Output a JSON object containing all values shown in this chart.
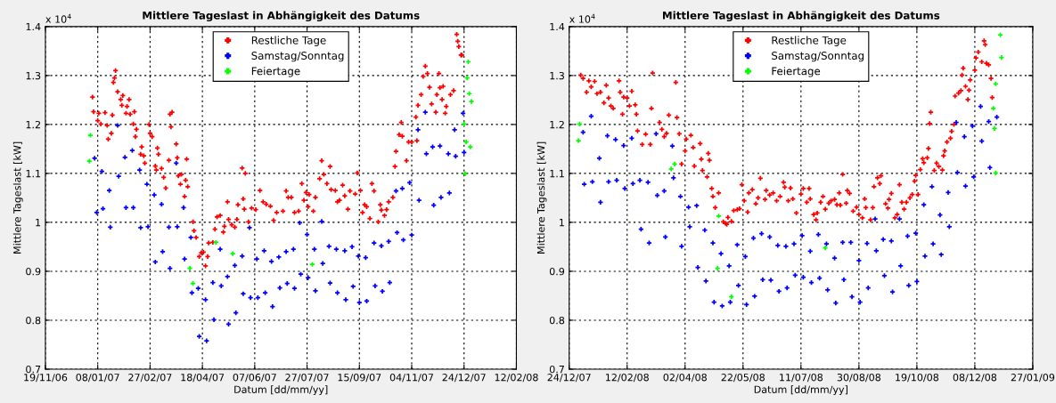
{
  "chart_data": [
    {
      "type": "scatter",
      "title": "Mittlere Tageslast in Abhängigkeit des Datums",
      "xlabel": "Datum [dd/mm/yy]",
      "ylabel": "Mittlere Tageslast [kW]",
      "annotations": [
        "x 10$^{4}$"
      ],
      "xlim": [
        "2006-11-19",
        "2008-02-12"
      ],
      "ylim": [
        0.7,
        1.4
      ],
      "xticks": [
        {
          "value": "2006-11-19",
          "label": "19/11/06"
        },
        {
          "value": "2007-01-08",
          "label": "08/01/07"
        },
        {
          "value": "2007-02-27",
          "label": "27/02/07"
        },
        {
          "value": "2007-04-18",
          "label": "18/04/07"
        },
        {
          "value": "2007-06-07",
          "label": "07/06/07"
        },
        {
          "value": "2007-07-27",
          "label": "27/07/07"
        },
        {
          "value": "2007-09-15",
          "label": "15/09/07"
        },
        {
          "value": "2007-11-04",
          "label": "04/11/07"
        },
        {
          "value": "2007-12-24",
          "label": "24/12/07"
        },
        {
          "value": "2008-02-12",
          "label": "12/02/08"
        }
      ],
      "yticks": [
        0.7,
        0.8,
        0.9,
        1,
        1.1,
        1.2,
        1.3,
        1.4
      ],
      "grid": true,
      "legend": "top",
      "marker": "cross",
      "series": [
        {
          "name": "Restliche Tage",
          "color": "#ff0000",
          "x": [
            "2007-01-03",
            "2007-01-04",
            "2007-01-08",
            "2007-01-09",
            "2007-01-11",
            "2007-01-15",
            "2007-01-17",
            "2007-01-18",
            "2007-01-21",
            "2007-01-22",
            "2007-01-23",
            "2007-01-25",
            "2007-01-24",
            "2007-01-27",
            "2007-01-30",
            "2007-01-31",
            "2007-02-01",
            "2007-02-04",
            "2007-02-05",
            "2007-02-07",
            "2007-02-08",
            "2007-02-11",
            "2007-02-12",
            "2007-02-14",
            "2007-02-13",
            "2007-02-19",
            "2007-02-18",
            "2007-02-21",
            "2007-02-22",
            "2007-02-26",
            "2007-02-27",
            "2007-03-01",
            "2007-03-04",
            "2007-03-06",
            "2007-03-07",
            "2007-03-05",
            "2007-03-10",
            "2007-03-12",
            "2007-03-14",
            "2007-03-17",
            "2007-03-18",
            "2007-03-20",
            "2007-03-19",
            "2007-03-24",
            "2007-03-25",
            "2007-03-26",
            "2007-03-28",
            "2007-03-29",
            "2007-04-02",
            "2007-04-01",
            "2007-04-03",
            "2007-04-04",
            "2007-04-09",
            "2007-04-10",
            "2007-04-12",
            "2007-04-15",
            "2007-04-17",
            "2007-04-19",
            "2007-04-21",
            "2007-04-23",
            "2007-04-24",
            "2007-04-28",
            "2007-04-30",
            "2007-05-02",
            "2007-05-05",
            "2007-05-08",
            "2007-05-09",
            "2007-05-12",
            "2007-05-13",
            "2007-05-16",
            "2007-05-19",
            "2007-05-21",
            "2007-05-22",
            "2007-05-26",
            "2007-05-29",
            "2007-05-27",
            "2007-05-28",
            "2007-06-01",
            "2007-06-04",
            "2007-06-08",
            "2007-06-12",
            "2007-06-15",
            "2007-06-18",
            "2007-06-22",
            "2007-06-25",
            "2007-06-28",
            "2007-07-04",
            "2007-07-07",
            "2007-07-09",
            "2007-07-12",
            "2007-07-15",
            "2007-07-19",
            "2007-07-22",
            "2007-07-24",
            "2007-07-26",
            "2007-07-28",
            "2007-07-29",
            "2007-08-02",
            "2007-08-04",
            "2007-08-08",
            "2007-08-10",
            "2007-08-12",
            "2007-08-15",
            "2007-08-18",
            "2007-08-19",
            "2007-08-23",
            "2007-08-25",
            "2007-08-27",
            "2007-08-30",
            "2007-09-01",
            "2007-09-04",
            "2007-09-06",
            "2007-09-11",
            "2007-09-13",
            "2007-09-16",
            "2007-09-18",
            "2007-09-20",
            "2007-09-22",
            "2007-09-25",
            "2007-09-27",
            "2007-09-29",
            "2007-10-03",
            "2007-10-05",
            "2007-10-06",
            "2007-10-09",
            "2007-10-11",
            "2007-10-13",
            "2007-10-17",
            "2007-10-19",
            "2007-10-20",
            "2007-10-23",
            "2007-10-25",
            "2007-10-26",
            "2007-10-30",
            "2007-11-01",
            "2007-11-04",
            "2007-11-08",
            "2007-11-09",
            "2007-11-10",
            "2007-11-13",
            "2007-11-15",
            "2007-11-17",
            "2007-11-19",
            "2007-11-21",
            "2007-11-23",
            "2007-11-27",
            "2007-11-28",
            "2007-11-30",
            "2007-12-01",
            "2007-12-03",
            "2007-12-04",
            "2007-12-06",
            "2007-12-07",
            "2007-12-11",
            "2007-12-14",
            "2007-12-17",
            "2007-12-18",
            "2007-12-19",
            "2007-12-21",
            "2007-12-22"
          ],
          "values": [
            1.256,
            1.226,
            1.208,
            1.223,
            1.201,
            1.224,
            1.198,
            1.17,
            1.182,
            1.219,
            1.286,
            1.31,
            1.295,
            1.267,
            1.251,
            1.239,
            1.259,
            1.223,
            1.237,
            1.251,
            1.221,
            1.201,
            1.226,
            1.19,
            1.175,
            1.154,
            1.139,
            1.136,
            1.121,
            1.2,
            1.182,
            1.175,
            1.115,
            1.152,
            1.139,
            1.107,
            1.11,
            1.092,
            1.07,
            1.127,
            1.221,
            1.225,
            1.195,
            1.16,
            1.132,
            1.095,
            1.078,
            1.098,
            1.086,
            1.053,
            1.129,
            1.073,
            1.001,
            0.983,
            0.969,
            0.93,
            0.938,
            0.939,
            0.911,
            0.93,
            0.958,
            0.959,
            0.986,
            1.011,
            1.014,
            0.98,
            0.992,
            1.042,
            1.006,
            0.995,
            0.99,
            1.006,
            1.036,
            1.111,
            1.1,
            1.048,
            1.027,
            1.001,
            1.029,
            1.026,
            1.065,
            1.042,
            1.037,
            1.033,
            1.004,
            1.02,
            1.023,
            1.064,
            1.051,
            1.051,
            1.02,
            1.023,
            1.079,
            1.045,
            1.061,
            1.032,
            1.057,
            1.023,
            1.051,
            1.089,
            1.126,
            1.098,
            1.079,
            1.114,
            1.067,
            1.065,
            1.042,
            1.045,
            1.076,
            1.054,
            1.027,
            1.064,
            1.058,
            1.101,
            1.065,
            1.02,
            1.036,
            1.032,
            1.008,
            1.079,
            1.064,
            1.001,
            1.036,
            1.025,
            1.014,
            1.026,
            1.042,
            1.051,
            1.114,
            1.145,
            1.179,
            1.204,
            1.176,
            1.126,
            1.164,
            1.164,
            1.215,
            1.167,
            1.239,
            1.261,
            1.298,
            1.319,
            1.304,
            1.276,
            1.242,
            1.225,
            1.261,
            1.304,
            1.275,
            1.251,
            1.278,
            1.223,
            1.237,
            1.261,
            1.269,
            1.384,
            1.37,
            1.359,
            1.342,
            1.342
          ]
        },
        {
          "name": "Samstag/Sonntag",
          "color": "#0000ff",
          "x": [
            "2007-01-05",
            "2007-01-07",
            "2007-01-12",
            "2007-01-13",
            "2007-01-19",
            "2007-01-20",
            "2007-01-27",
            "2007-01-28",
            "2007-02-03",
            "2007-02-04",
            "2007-02-10",
            "2007-02-11",
            "2007-02-17",
            "2007-02-18",
            "2007-02-24",
            "2007-02-25",
            "2007-03-03",
            "2007-03-04",
            "2007-03-10",
            "2007-03-11",
            "2007-03-17",
            "2007-03-18",
            "2007-03-24",
            "2007-03-25",
            "2007-03-31",
            "2007-04-01",
            "2007-04-07",
            "2007-04-08",
            "2007-04-14",
            "2007-04-15",
            "2007-04-21",
            "2007-04-22",
            "2007-04-28",
            "2007-04-29",
            "2007-05-05",
            "2007-05-06",
            "2007-05-12",
            "2007-05-13",
            "2007-05-19",
            "2007-05-20",
            "2007-05-26",
            "2007-05-27",
            "2007-06-02",
            "2007-06-03",
            "2007-06-09",
            "2007-06-10",
            "2007-06-16",
            "2007-06-17",
            "2007-06-23",
            "2007-06-24",
            "2007-06-30",
            "2007-07-01",
            "2007-07-07",
            "2007-07-08",
            "2007-07-14",
            "2007-07-15",
            "2007-07-20",
            "2007-07-21",
            "2007-07-27",
            "2007-07-28",
            "2007-08-03",
            "2007-08-04",
            "2007-08-10",
            "2007-08-11",
            "2007-08-17",
            "2007-08-18",
            "2007-08-24",
            "2007-08-25",
            "2007-09-01",
            "2007-09-02",
            "2007-09-08",
            "2007-09-09",
            "2007-09-14",
            "2007-09-15",
            "2007-09-21",
            "2007-09-22",
            "2007-09-29",
            "2007-09-30",
            "2007-10-06",
            "2007-10-07",
            "2007-10-13",
            "2007-10-14",
            "2007-10-21",
            "2007-10-27",
            "2007-11-04",
            "2007-10-20",
            "2007-10-26",
            "2007-11-02",
            "2007-11-10",
            "2007-11-11",
            "2007-11-17",
            "2007-11-18",
            "2007-11-24",
            "2007-11-25",
            "2007-12-01",
            "2007-12-02",
            "2007-12-09",
            "2007-12-10",
            "2007-12-15",
            "2007-12-16",
            "2007-12-23",
            "2007-12-24"
          ],
          "values": [
            1.131,
            1.02,
            1.104,
            1.028,
            1.065,
            0.99,
            1.198,
            1.094,
            1.133,
            1.03,
            1.147,
            1.03,
            1.107,
            0.989,
            1.078,
            0.991,
            1.056,
            0.919,
            1.037,
            0.94,
            0.99,
            0.906,
            1.121,
            0.991,
            1.03,
            0.925,
            0.969,
            0.856,
            0.865,
            0.767,
            0.842,
            0.758,
            0.877,
            0.801,
            0.945,
            0.87,
            0.889,
            0.792,
            0.912,
            0.815,
            0.931,
            0.854,
            0.989,
            0.846,
            0.925,
            0.846,
            0.942,
            0.856,
            0.92,
            0.828,
            0.929,
            0.866,
            0.94,
            0.875,
            0.945,
            0.865,
            0.999,
            0.894,
            0.975,
            0.887,
            0.945,
            0.86,
            1.002,
            0.916,
            0.951,
            0.876,
            0.945,
            0.856,
            0.942,
            0.842,
            0.95,
            0.869,
            0.931,
            0.836,
            0.928,
            0.839,
            0.958,
            0.87,
            0.952,
            0.859,
            0.961,
            0.877,
            0.979,
            0.964,
            0.974,
            1.064,
            1.069,
            1.081,
            1.189,
            1.045,
            1.225,
            1.14,
            1.154,
            1.035,
            1.156,
            1.051,
            1.14,
            1.06,
            1.189,
            1.135,
            1.223,
            1.143
          ]
        },
        {
          "name": "Feiertage",
          "color": "#00ff00",
          "x": [
            "2007-01-01",
            "2006-12-31",
            "2007-04-06",
            "2007-04-09",
            "2007-05-01",
            "2007-05-17",
            "2007-08-01",
            "2007-12-28",
            "2007-12-27",
            "2007-12-29",
            "2007-12-31",
            "2007-12-24",
            "2007-12-26",
            "2007-12-30",
            "2007-12-25"
          ],
          "values": [
            1.178,
            1.125,
            0.906,
            0.875,
            0.959,
            0.936,
            0.914,
            1.328,
            1.295,
            1.263,
            1.247,
            1.201,
            1.164,
            1.154,
            1.099
          ]
        }
      ]
    },
    {
      "type": "scatter",
      "title": "Mittlere Tageslast in Abhängigkeit des Datums",
      "xlabel": "Datum [dd/mm/yy]",
      "ylabel": "Mittlere Tageslast [kW]",
      "annotations": [
        "x 10$^{4}$"
      ],
      "xlim": [
        "2007-12-24",
        "2009-01-27"
      ],
      "ylim": [
        0.7,
        1.4
      ],
      "xticks": [
        {
          "value": "2007-12-24",
          "label": "24/12/07"
        },
        {
          "value": "2008-02-12",
          "label": "12/02/08"
        },
        {
          "value": "2008-04-02",
          "label": "02/04/08"
        },
        {
          "value": "2008-05-22",
          "label": "22/05/08"
        },
        {
          "value": "2008-07-11",
          "label": "11/07/08"
        },
        {
          "value": "2008-08-30",
          "label": "30/08/08"
        },
        {
          "value": "2008-10-19",
          "label": "19/10/08"
        },
        {
          "value": "2008-12-08",
          "label": "08/12/08"
        },
        {
          "value": "2009-01-27",
          "label": "27/01/09"
        }
      ],
      "yticks": [
        0.7,
        0.8,
        0.9,
        1,
        1.1,
        1.2,
        1.3,
        1.4
      ],
      "grid": true,
      "legend": "top",
      "marker": "cross",
      "series": [
        {
          "name": "Restliche Tage",
          "color": "#ff0000",
          "x": [
            "2008-01-03",
            "2008-01-05",
            "2008-01-08",
            "2008-01-10",
            "2008-01-12",
            "2008-01-15",
            "2008-01-17",
            "2008-01-20",
            "2008-01-23",
            "2008-01-25",
            "2008-01-27",
            "2008-01-29",
            "2008-01-31",
            "2008-02-05",
            "2008-02-06",
            "2008-02-08",
            "2008-02-09",
            "2008-02-12",
            "2008-02-14",
            "2008-02-16",
            "2008-02-19",
            "2008-02-20",
            "2008-02-21",
            "2008-02-25",
            "2008-02-28",
            "2008-03-03",
            "2008-03-04",
            "2008-03-05",
            "2008-03-11",
            "2008-03-13",
            "2008-03-15",
            "2008-03-17",
            "2008-03-19",
            "2008-03-25",
            "2008-03-26",
            "2008-03-28",
            "2008-03-30",
            "2008-04-02",
            "2008-04-03",
            "2008-04-07",
            "2008-04-09",
            "2008-04-10",
            "2008-04-15",
            "2008-04-16",
            "2008-04-17",
            "2008-04-21",
            "2008-04-22",
            "2008-04-23",
            "2008-04-25",
            "2008-04-26",
            "2008-04-28",
            "2008-05-01",
            "2008-05-05",
            "2008-05-07",
            "2008-05-08",
            "2008-05-09",
            "2008-05-12",
            "2008-05-14",
            "2008-05-17",
            "2008-05-19",
            "2008-05-21",
            "2008-05-23",
            "2008-05-26",
            "2008-05-27",
            "2008-05-30",
            "2008-06-02",
            "2008-06-04",
            "2008-06-06",
            "2008-06-10",
            "2008-06-11",
            "2008-06-14",
            "2008-06-17",
            "2008-06-20",
            "2008-06-23",
            "2008-06-26",
            "2008-06-27",
            "2008-06-30",
            "2008-07-02",
            "2008-07-04",
            "2008-07-07",
            "2008-07-11",
            "2008-07-13",
            "2008-07-16",
            "2008-07-18",
            "2008-07-19",
            "2008-07-22",
            "2008-07-24",
            "2008-07-25",
            "2008-07-28",
            "2008-07-30",
            "2008-08-01",
            "2008-08-04",
            "2008-08-06",
            "2008-08-09",
            "2008-08-11",
            "2008-08-13",
            "2008-08-14",
            "2008-08-16",
            "2008-08-19",
            "2008-08-20",
            "2008-08-22",
            "2008-08-25",
            "2008-08-28",
            "2008-08-30",
            "2008-09-02",
            "2008-09-04",
            "2008-09-05",
            "2008-09-09",
            "2008-09-11",
            "2008-09-12",
            "2008-09-15",
            "2008-09-17",
            "2008-09-18",
            "2008-09-22",
            "2008-09-24",
            "2008-09-25",
            "2008-09-27",
            "2008-09-30",
            "2008-10-02",
            "2008-10-04",
            "2008-10-06",
            "2008-10-08",
            "2008-10-10",
            "2008-10-13",
            "2008-10-15",
            "2008-10-17",
            "2008-10-18",
            "2008-10-20",
            "2008-10-22",
            "2008-10-24",
            "2008-10-25",
            "2008-10-28",
            "2008-10-29",
            "2008-10-30",
            "2008-10-31",
            "2008-11-03",
            "2008-11-05",
            "2008-11-07",
            "2008-11-10",
            "2008-11-11",
            "2008-11-12",
            "2008-11-14",
            "2008-11-17",
            "2008-11-18",
            "2008-11-20",
            "2008-11-21",
            "2008-11-24",
            "2008-11-26",
            "2008-11-27",
            "2008-11-28",
            "2008-11-30",
            "2008-12-02",
            "2008-12-03",
            "2008-12-04",
            "2008-12-08",
            "2008-12-09",
            "2008-12-11",
            "2008-12-14",
            "2008-12-16",
            "2008-12-17",
            "2008-12-18",
            "2008-12-20",
            "2008-12-22",
            "2008-12-23"
          ],
          "values": [
            1.301,
            1.294,
            1.266,
            1.289,
            1.277,
            1.288,
            1.263,
            1.266,
            1.244,
            1.28,
            1.254,
            1.238,
            1.233,
            1.289,
            1.266,
            1.221,
            1.256,
            1.254,
            1.238,
            1.268,
            1.24,
            1.221,
            1.187,
            1.159,
            1.18,
            1.159,
            1.233,
            1.305,
            1.204,
            1.19,
            1.175,
            1.182,
            1.219,
            1.286,
            1.214,
            1.181,
            1.119,
            1.146,
            1.17,
            1.178,
            1.153,
            1.115,
            1.161,
            1.129,
            1.106,
            1.093,
            1.141,
            1.127,
            1.069,
            1.053,
            1.03,
            1.06,
            1.001,
            0.998,
            0.996,
            1.01,
            1.002,
            1.024,
            1.026,
            1.028,
            1.077,
            1.044,
            1.021,
            1.06,
            1.067,
            1.038,
            1.05,
            1.09,
            1.047,
            1.065,
            1.056,
            1.06,
            1.044,
            1.053,
            1.082,
            1.072,
            1.044,
            1.07,
            1.048,
            1.019,
            1.058,
            1.069,
            1.041,
            1.069,
            1.048,
            1.016,
            1.005,
            1.019,
            1.041,
            1.053,
            1.027,
            1.039,
            1.044,
            1.047,
            1.036,
            1.06,
            1.035,
            1.098,
            1.039,
            1.065,
            1.059,
            1.023,
            1.031,
            1.016,
            1.009,
            1.048,
            1.03,
            1.005,
            1.03,
            1.073,
            1.091,
            1.079,
            1.095,
            1.038,
            1.029,
            1.047,
            1.059,
            1.009,
            1.016,
            1.077,
            1.041,
            1.027,
            1.041,
            1.05,
            1.057,
            1.084,
            1.096,
            1.057,
            1.108,
            1.13,
            1.122,
            1.132,
            1.151,
            1.202,
            1.225,
            1.106,
            1.121,
            1.114,
            1.107,
            1.136,
            1.146,
            1.164,
            1.172,
            1.186,
            1.2,
            1.258,
            1.264,
            1.269,
            1.301,
            1.315,
            1.278,
            1.251,
            1.27,
            1.291,
            1.311,
            1.336,
            1.348,
            1.328,
            1.371,
            1.363,
            1.325,
            1.322,
            1.294,
            1.255
          ]
        },
        {
          "name": "Samstag/Sonntag",
          "color": "#0000ff",
          "x": [
            "2008-01-05",
            "2008-01-06",
            "2008-01-12",
            "2008-01-13",
            "2008-01-19",
            "2008-01-20",
            "2008-01-26",
            "2008-01-27",
            "2008-02-02",
            "2008-02-03",
            "2008-02-09",
            "2008-02-10",
            "2008-02-16",
            "2008-02-17",
            "2008-02-23",
            "2008-02-24",
            "2008-03-01",
            "2008-03-02",
            "2008-03-08",
            "2008-03-09",
            "2008-03-15",
            "2008-03-16",
            "2008-03-22",
            "2008-03-23",
            "2008-03-29",
            "2008-03-30",
            "2008-04-05",
            "2008-04-06",
            "2008-04-12",
            "2008-04-13",
            "2008-04-19",
            "2008-04-20",
            "2008-04-26",
            "2008-04-27",
            "2008-05-03",
            "2008-05-04",
            "2008-05-10",
            "2008-05-11",
            "2008-05-17",
            "2008-05-18",
            "2008-05-24",
            "2008-05-25",
            "2008-05-31",
            "2008-06-01",
            "2008-06-07",
            "2008-06-08",
            "2008-06-14",
            "2008-06-15",
            "2008-06-21",
            "2008-06-22",
            "2008-06-28",
            "2008-06-29",
            "2008-07-05",
            "2008-07-06",
            "2008-07-12",
            "2008-07-13",
            "2008-07-19",
            "2008-07-20",
            "2008-07-26",
            "2008-07-27",
            "2008-08-02",
            "2008-08-03",
            "2008-08-09",
            "2008-08-10",
            "2008-08-16",
            "2008-08-17",
            "2008-08-23",
            "2008-08-24",
            "2008-08-30",
            "2008-08-31",
            "2008-09-06",
            "2008-09-07",
            "2008-09-13",
            "2008-09-14",
            "2008-09-20",
            "2008-09-21",
            "2008-09-27",
            "2008-09-28",
            "2008-10-04",
            "2008-10-05",
            "2008-10-11",
            "2008-10-12",
            "2008-10-18",
            "2008-10-19",
            "2008-10-25",
            "2008-10-26",
            "2008-11-01",
            "2008-11-02",
            "2008-11-08",
            "2008-11-09",
            "2008-11-15",
            "2008-11-16",
            "2008-11-22",
            "2008-11-23",
            "2008-11-29",
            "2008-11-30",
            "2008-12-06",
            "2008-12-07",
            "2008-12-13",
            "2008-12-14",
            "2008-12-20",
            "2008-12-21",
            "2008-12-27"
          ],
          "values": [
            1.184,
            1.078,
            1.217,
            1.083,
            1.131,
            1.041,
            1.177,
            1.083,
            1.169,
            1.086,
            1.157,
            1.069,
            1.172,
            1.079,
            1.086,
            0.986,
            1.082,
            0.958,
            1.181,
            1.055,
            1.064,
            0.97,
            1.156,
            1.091,
            1.053,
            0.951,
            1.031,
            0.991,
            1.034,
            0.908,
            0.984,
            0.88,
            0.958,
            0.837,
            0.936,
            0.829,
            0.911,
            0.837,
            0.954,
            0.871,
            0.93,
            0.832,
            0.968,
            0.849,
            0.977,
            0.883,
            0.97,
            0.882,
            0.953,
            0.859,
            0.951,
            0.866,
            0.956,
            0.892,
            0.973,
            0.888,
            0.941,
            0.877,
            0.975,
            0.886,
            0.956,
            0.862,
            0.927,
            0.835,
            0.959,
            0.883,
            0.959,
            0.848,
            0.922,
            0.837,
            0.957,
            0.866,
            1.007,
            0.942,
            0.965,
            0.891,
            0.962,
            0.858,
            1.007,
            0.911,
            0.972,
            0.871,
            0.978,
            0.879,
            1.036,
            0.931,
            1.073,
            0.956,
            1.015,
            0.934,
            1.061,
            0.991,
            1.204,
            1.102,
            1.175,
            1.074,
            1.197,
            1.093,
            1.237,
            1.166,
            1.206,
            1.112,
            1.215
          ]
        },
        {
          "name": "Feiertage",
          "color": "#00ff00",
          "x": [
            "2008-01-02",
            "2008-01-01",
            "2008-03-21",
            "2008-03-24",
            "2008-05-01",
            "2008-04-30",
            "2008-05-12",
            "2008-08-01",
            "2008-12-30",
            "2008-12-31",
            "2008-12-26",
            "2008-12-24",
            "2008-12-25",
            "2008-12-26"
          ],
          "values": [
            1.201,
            1.167,
            1.109,
            1.119,
            1.013,
            0.906,
            0.848,
            0.948,
            1.383,
            1.337,
            1.283,
            1.233,
            1.192,
            1.101
          ]
        }
      ]
    }
  ]
}
